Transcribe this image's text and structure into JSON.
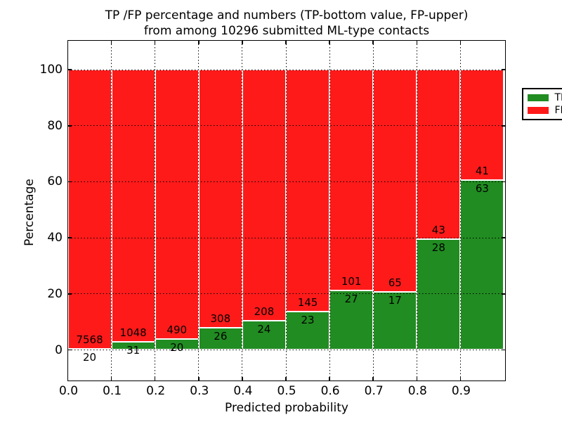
{
  "chart_data": {
    "type": "bar",
    "stacked": true,
    "normalized_to_percent": true,
    "title_line1": "TP /FP percentage and numbers (TP-bottom value, FP-upper)",
    "title_line2": "from among 10296 submitted ML-type contacts",
    "xlabel": "Predicted probability",
    "ylabel": "Percentage",
    "total_contacts": 10296,
    "bin_edges": [
      0.0,
      0.1,
      0.2,
      0.3,
      0.4,
      0.5,
      0.6,
      0.7,
      0.8,
      0.9,
      1.0
    ],
    "x_tick_labels": [
      "0.0",
      "0.1",
      "0.2",
      "0.3",
      "0.4",
      "0.5",
      "0.6",
      "0.7",
      "0.8",
      "0.9"
    ],
    "y_tick_labels": [
      "0",
      "20",
      "40",
      "60",
      "80",
      "100"
    ],
    "y_ticks_pct": [
      0,
      20,
      40,
      60,
      80,
      100
    ],
    "ylim": [
      -10.5,
      110.5
    ],
    "xlim": [
      0.0,
      1.0
    ],
    "grid": {
      "on": true,
      "style": "dotted",
      "color": "#000000"
    },
    "series": [
      {
        "name": "TP",
        "role": "bottom",
        "color": "#218c21",
        "counts": [
          20,
          31,
          20,
          26,
          24,
          23,
          27,
          17,
          28,
          63
        ]
      },
      {
        "name": "FP",
        "role": "upper",
        "color": "#ff1a1a",
        "counts": [
          7568,
          1048,
          490,
          308,
          208,
          145,
          101,
          65,
          43,
          41
        ]
      }
    ],
    "tp_percent_per_bin": [
      0.26,
      2.87,
      3.92,
      7.78,
      10.34,
      13.69,
      21.09,
      20.73,
      39.44,
      60.58
    ],
    "legend": {
      "position": "upper right",
      "entries": [
        {
          "label": "TP",
          "color": "#218c21"
        },
        {
          "label": "FP",
          "color": "#ff1a1a"
        }
      ]
    },
    "colors": {
      "tp": "#218c21",
      "fp": "#ff1a1a",
      "background": "#ffffff",
      "frame": "#000000"
    }
  }
}
